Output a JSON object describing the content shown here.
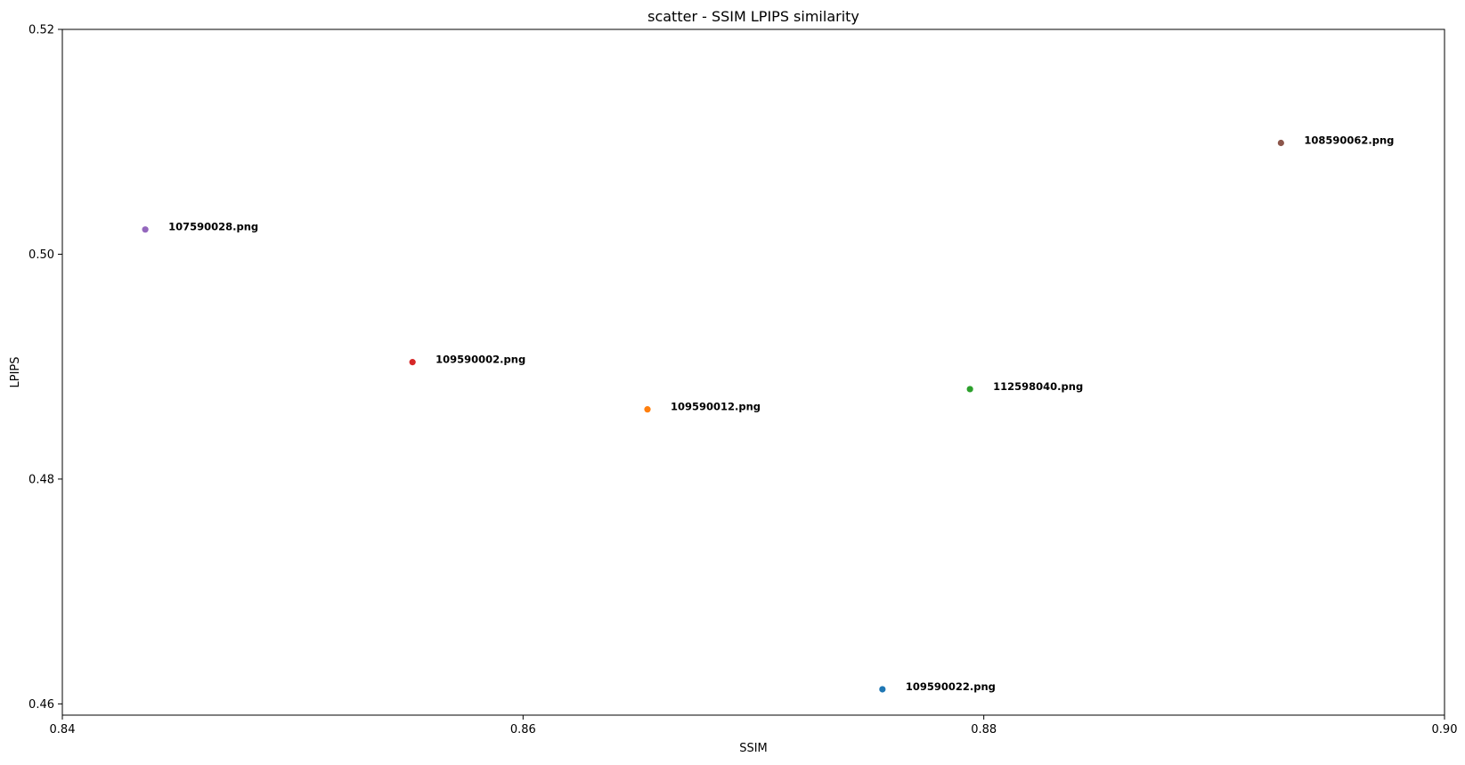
{
  "chart_data": {
    "type": "scatter",
    "title": "scatter - SSIM LPIPS similarity",
    "xlabel": "SSIM",
    "ylabel": "LPIPS",
    "xlim": [
      0.84,
      0.9
    ],
    "ylim": [
      0.459,
      0.52
    ],
    "xticks": [
      0.84,
      0.86,
      0.88,
      0.9
    ],
    "xtick_labels": [
      "0.84",
      "0.86",
      "0.88",
      "0.90"
    ],
    "yticks": [
      0.46,
      0.48,
      0.5,
      0.52
    ],
    "ytick_labels": [
      "0.46",
      "0.48",
      "0.50",
      "0.52"
    ],
    "grid": false,
    "points": [
      {
        "label": "109590022.png",
        "x": 0.8756,
        "y": 0.4613,
        "color": "#1f77b4"
      },
      {
        "label": "109590012.png",
        "x": 0.8654,
        "y": 0.4862,
        "color": "#ff7f0e"
      },
      {
        "label": "112598040.png",
        "x": 0.8794,
        "y": 0.488,
        "color": "#2ca02c"
      },
      {
        "label": "109590002.png",
        "x": 0.8552,
        "y": 0.4904,
        "color": "#d62728"
      },
      {
        "label": "107590028.png",
        "x": 0.8436,
        "y": 0.5022,
        "color": "#9467bd"
      },
      {
        "label": "108590062.png",
        "x": 0.8929,
        "y": 0.5099,
        "color": "#8c564b"
      }
    ]
  }
}
